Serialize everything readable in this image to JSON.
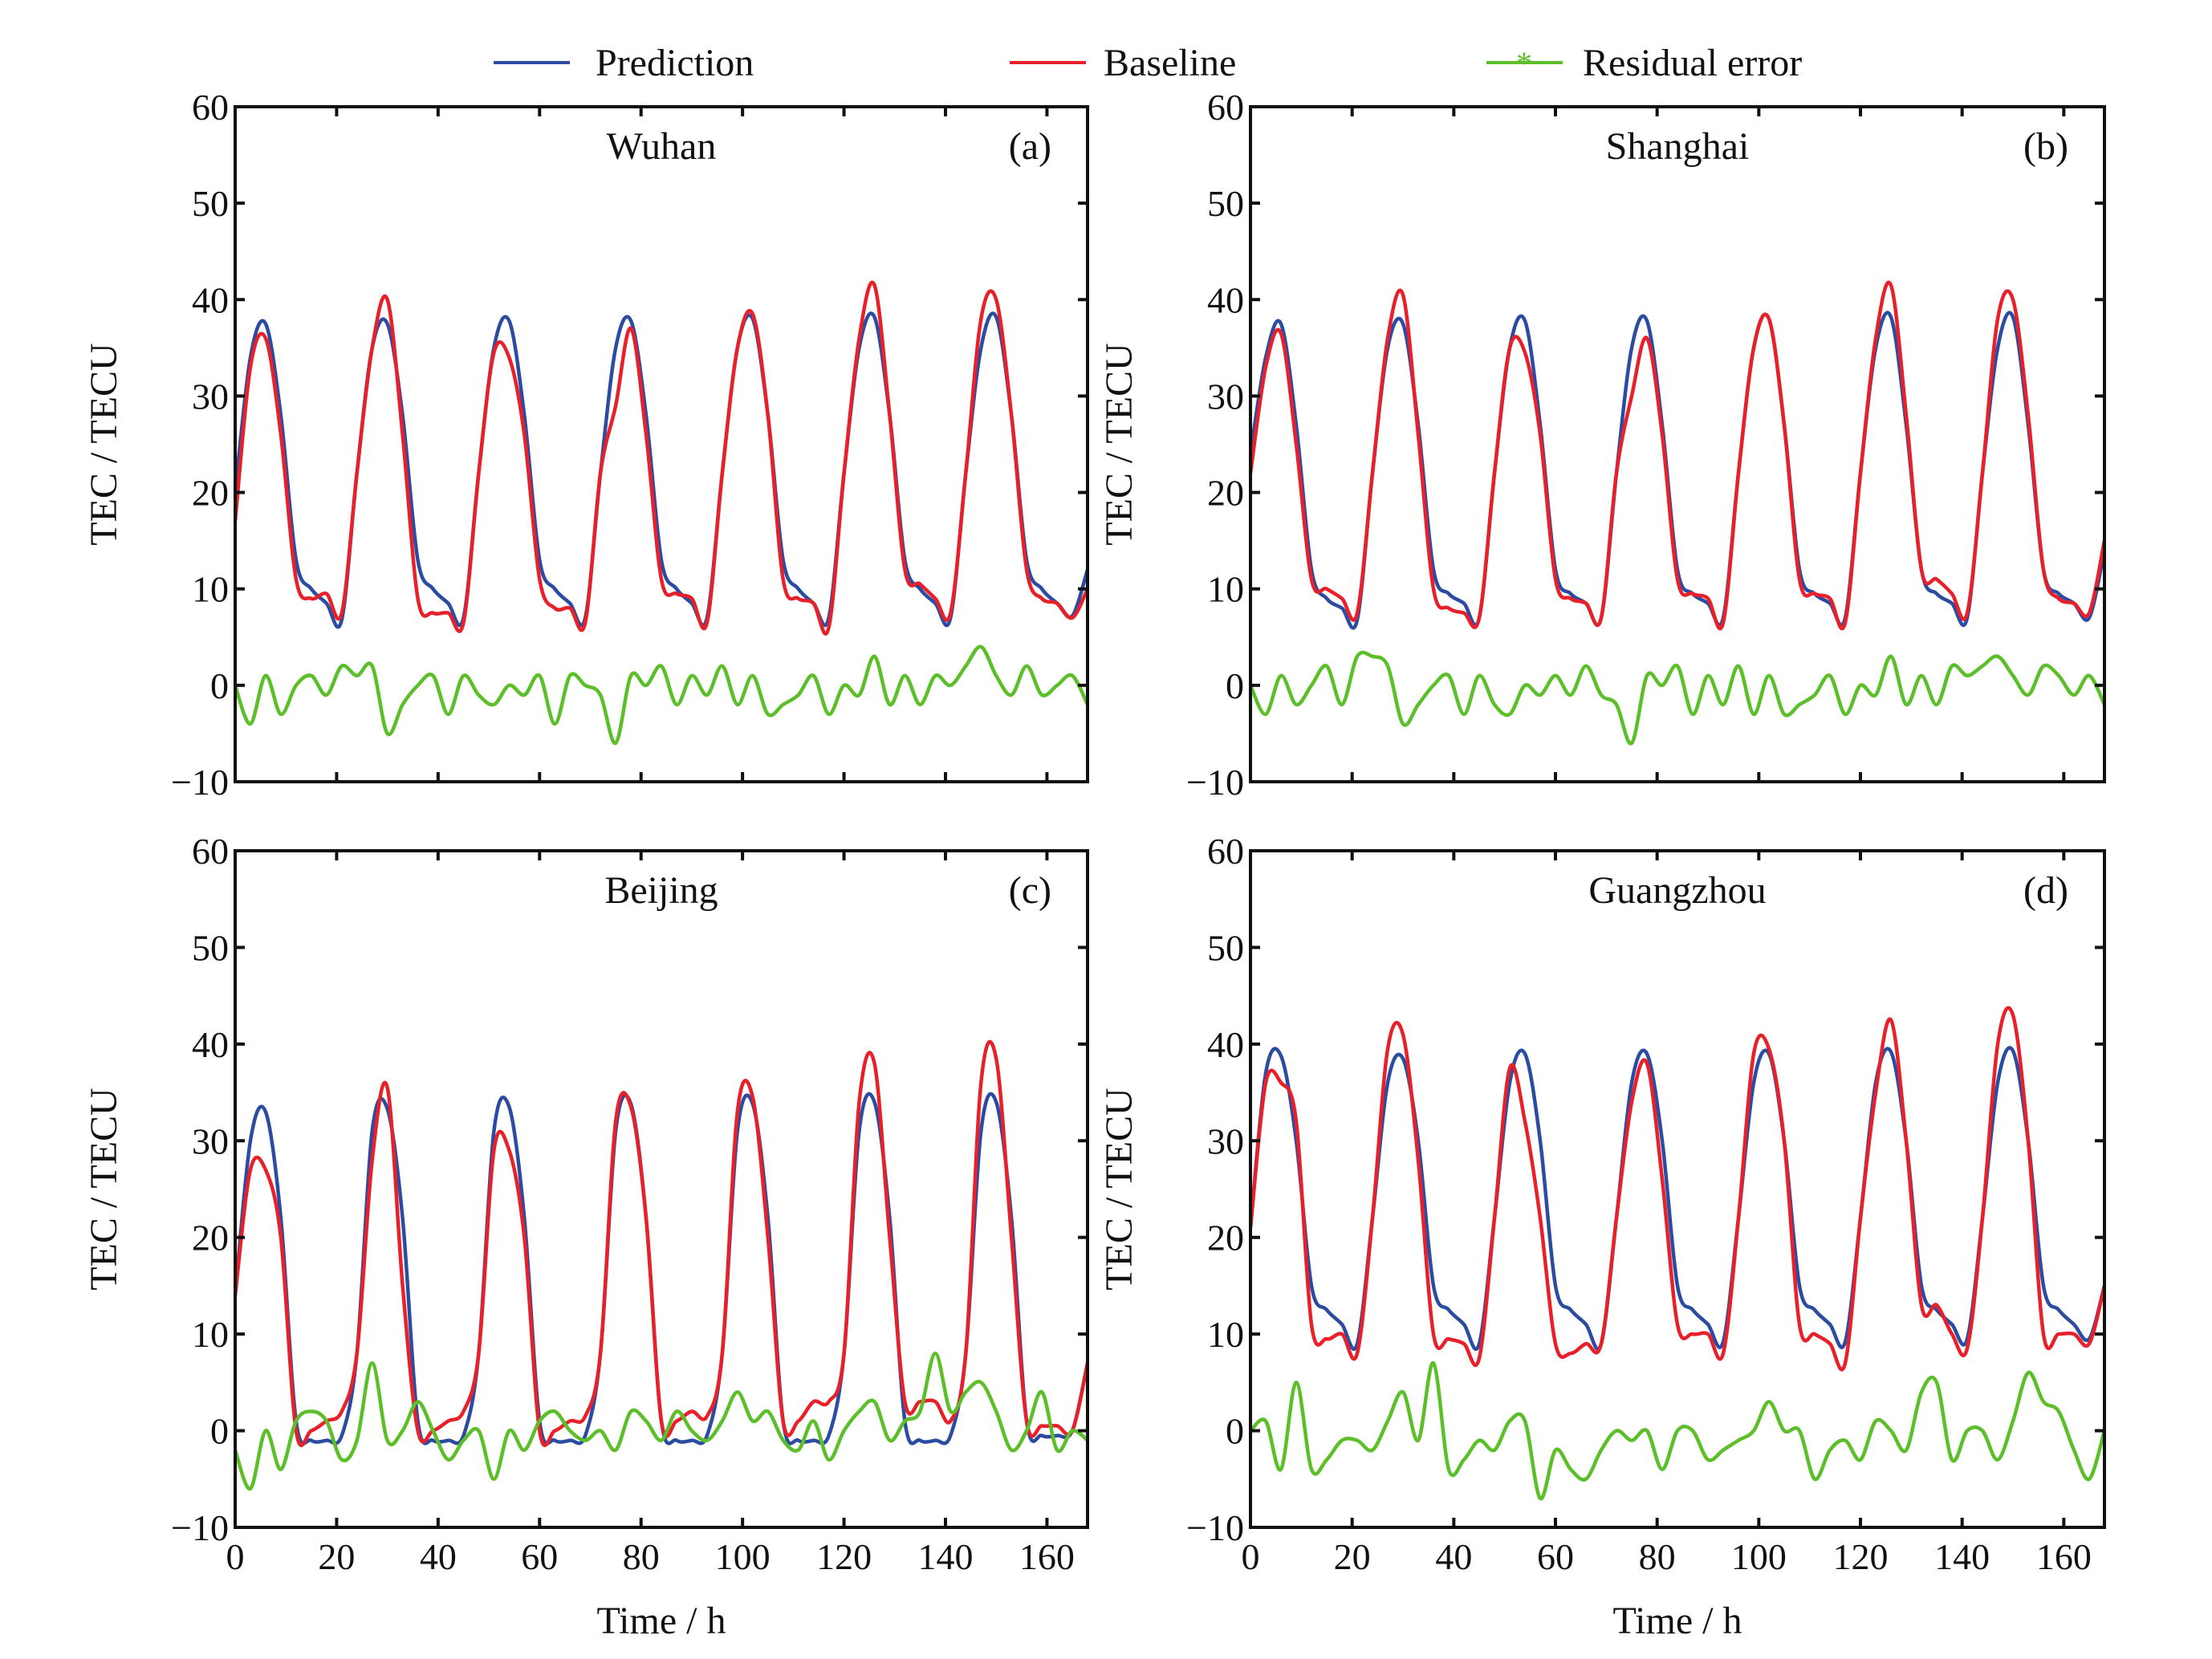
{
  "legend": {
    "placement": "top",
    "items": [
      {
        "label": "Prediction",
        "color": "#2b4ca0",
        "marker": "none"
      },
      {
        "label": "Baseline",
        "color": "#e8202a",
        "marker": "none"
      },
      {
        "label": "Residual error",
        "color": "#5cbf2a",
        "marker": "star"
      }
    ]
  },
  "chart_data": [
    {
      "type": "line",
      "title": "Wuhan",
      "panel_label": "(a)",
      "xlabel": "",
      "ylabel": "TEC / TECU",
      "xlim": [
        0,
        168
      ],
      "ylim": [
        -10,
        60
      ],
      "xticks": [
        0,
        20,
        40,
        60,
        80,
        100,
        120,
        140,
        160
      ],
      "yticks": [
        -10,
        0,
        10,
        20,
        30,
        40,
        50,
        60
      ],
      "show_xtick_labels": false,
      "grid": false,
      "x": [
        0,
        3,
        6,
        9,
        12,
        15,
        18,
        21,
        24,
        27,
        30,
        33,
        36,
        39,
        42,
        45,
        48,
        51,
        54,
        57,
        60,
        63,
        66,
        69,
        72,
        75,
        78,
        81,
        84,
        87,
        90,
        93,
        96,
        99,
        102,
        105,
        108,
        111,
        114,
        117,
        120,
        123,
        126,
        129,
        132,
        135,
        138,
        141,
        144,
        147,
        150,
        153,
        156,
        159,
        162,
        165,
        168
      ],
      "series": [
        {
          "name": "Prediction",
          "values": [
            20,
            34,
            37.5,
            28,
            13,
            10,
            8.5,
            6.8,
            22,
            35,
            37.5,
            28,
            13,
            10,
            8.5,
            7,
            22,
            35,
            37.8,
            28,
            13,
            10,
            8.5,
            7,
            22,
            35,
            37.8,
            28,
            13,
            10,
            8.5,
            7,
            22,
            35,
            38,
            28,
            13,
            10,
            8.5,
            7,
            22,
            35,
            38.2,
            28,
            13,
            10,
            8.5,
            7,
            22,
            35,
            38.2,
            28,
            13,
            10,
            8.5,
            7.2,
            12
          ]
        },
        {
          "name": "Baseline",
          "values": [
            17,
            33,
            36,
            26,
            11,
            9,
            9.5,
            7.5,
            22,
            35,
            40,
            26,
            9,
            7.5,
            7.5,
            6.5,
            22,
            34.5,
            34,
            26,
            11,
            8,
            8,
            6.5,
            22,
            29,
            37,
            26,
            11,
            9.5,
            9,
            6.5,
            22,
            35,
            38.5,
            28,
            11,
            9,
            8.5,
            6,
            22,
            36,
            41.5,
            28,
            12,
            10.5,
            9,
            7.5,
            22,
            38,
            40,
            28,
            12,
            9,
            8.5,
            7,
            10
          ]
        },
        {
          "name": "Residual error",
          "values": [
            0,
            -4,
            1,
            -3,
            0,
            1,
            -1,
            2,
            1,
            2,
            -5,
            -2,
            0,
            1,
            -3,
            1,
            -1,
            -2,
            0,
            -1,
            1,
            -4,
            1,
            0,
            -1,
            -6,
            1,
            0,
            2,
            -2,
            1,
            -1,
            2,
            -2,
            1,
            -3,
            -2,
            -1,
            1,
            -3,
            0,
            -1,
            3,
            -2,
            1,
            -2,
            1,
            0,
            2,
            4,
            1,
            -1,
            2,
            -1,
            0,
            1,
            -2
          ]
        }
      ]
    },
    {
      "type": "line",
      "title": "Shanghai",
      "panel_label": "(b)",
      "xlabel": "",
      "ylabel": "TEC / TECU",
      "xlim": [
        0,
        168
      ],
      "ylim": [
        -10,
        60
      ],
      "xticks": [
        0,
        20,
        40,
        60,
        80,
        100,
        120,
        140,
        160
      ],
      "yticks": [
        -10,
        0,
        10,
        20,
        30,
        40,
        50,
        60
      ],
      "show_xtick_labels": false,
      "grid": false,
      "x": [
        0,
        3,
        6,
        9,
        12,
        15,
        18,
        21,
        24,
        27,
        30,
        33,
        36,
        39,
        42,
        45,
        48,
        51,
        54,
        57,
        60,
        63,
        66,
        69,
        72,
        75,
        78,
        81,
        84,
        87,
        90,
        93,
        96,
        99,
        102,
        105,
        108,
        111,
        114,
        117,
        120,
        123,
        126,
        129,
        132,
        135,
        138,
        141,
        144,
        147,
        150,
        153,
        156,
        159,
        162,
        165,
        168
      ],
      "series": [
        {
          "name": "Prediction",
          "values": [
            24,
            34,
            37.5,
            27,
            12,
            9,
            8,
            6.8,
            22,
            35,
            37.5,
            27,
            12,
            9.5,
            8.5,
            7,
            22,
            35,
            37.8,
            27,
            12,
            9.5,
            8.5,
            7,
            22,
            35,
            37.8,
            27,
            12,
            9.5,
            8.5,
            7,
            22,
            35,
            38,
            27,
            12,
            9.5,
            8.5,
            7,
            22,
            35,
            38.2,
            27,
            12,
            9.5,
            8.5,
            7,
            22,
            35,
            38.2,
            27,
            12,
            9.5,
            8.5,
            7,
            14
          ]
        },
        {
          "name": "Baseline",
          "values": [
            22,
            33,
            36.5,
            25,
            11,
            10,
            9,
            7.5,
            22,
            36,
            40.5,
            26,
            10,
            8,
            7.5,
            7,
            22,
            35,
            34.5,
            26,
            11,
            9,
            8.5,
            7,
            22,
            30,
            36,
            26,
            11,
            9.5,
            9,
            6.5,
            22,
            35,
            38,
            27,
            11,
            9.5,
            9,
            6.5,
            22,
            36,
            41.5,
            28,
            12,
            11,
            9.5,
            7.5,
            22,
            38,
            40,
            28,
            12,
            9,
            8.5,
            7.5,
            15
          ]
        },
        {
          "name": "Residual error",
          "values": [
            0,
            -3,
            1,
            -2,
            0,
            2,
            -2,
            3,
            3,
            2,
            -4,
            -2,
            0,
            1,
            -3,
            1,
            -2,
            -3,
            0,
            -1,
            1,
            -1,
            2,
            -1,
            -2,
            -6,
            1,
            0,
            2,
            -3,
            1,
            -2,
            2,
            -3,
            1,
            -3,
            -2,
            -1,
            1,
            -3,
            0,
            -1,
            3,
            -2,
            1,
            -2,
            2,
            1,
            2,
            3,
            1,
            -1,
            2,
            1,
            -1,
            1,
            -2
          ]
        }
      ]
    },
    {
      "type": "line",
      "title": "Beijing",
      "panel_label": "(c)",
      "xlabel": "Time / h",
      "ylabel": "TEC / TECU",
      "xlim": [
        0,
        168
      ],
      "ylim": [
        -10,
        60
      ],
      "xticks": [
        0,
        20,
        40,
        60,
        80,
        100,
        120,
        140,
        160
      ],
      "yticks": [
        -10,
        0,
        10,
        20,
        30,
        40,
        50,
        60
      ],
      "show_xtick_labels": true,
      "grid": false,
      "x": [
        0,
        3,
        6,
        9,
        12,
        15,
        18,
        21,
        24,
        27,
        30,
        33,
        36,
        39,
        42,
        45,
        48,
        51,
        54,
        57,
        60,
        63,
        66,
        69,
        72,
        75,
        78,
        81,
        84,
        87,
        90,
        93,
        96,
        99,
        102,
        105,
        108,
        111,
        114,
        117,
        120,
        123,
        126,
        129,
        132,
        135,
        138,
        141,
        144,
        147,
        150,
        153,
        156,
        159,
        162,
        165,
        168
      ],
      "series": [
        {
          "name": "Prediction",
          "values": [
            14,
            30,
            33,
            22,
            1,
            -1,
            -1,
            -0.5,
            8,
            31,
            33.3,
            22,
            1,
            -1,
            -1,
            -0.5,
            8,
            31,
            33.5,
            22,
            1,
            -1,
            -1,
            -0.5,
            8,
            31,
            33.8,
            22,
            1,
            -1,
            -1,
            -0.5,
            8,
            31,
            33.8,
            22,
            1,
            -1,
            -1,
            -0.5,
            8,
            31,
            34,
            22,
            1,
            -1,
            -1,
            -0.5,
            8,
            31,
            34,
            22,
            1,
            -0.5,
            -0.5,
            0,
            7
          ]
        },
        {
          "name": "Baseline",
          "values": [
            14,
            27,
            27,
            20,
            0,
            0,
            1,
            2,
            8,
            28,
            35.5,
            15,
            0,
            0,
            1,
            2,
            8,
            29,
            29,
            20,
            0,
            0,
            1,
            1.5,
            8,
            32,
            33.5,
            22,
            1,
            1,
            2,
            1.5,
            8,
            33,
            34.5,
            20,
            1,
            1,
            3,
            3,
            8,
            34,
            38,
            20,
            3,
            3,
            3,
            1,
            8,
            36,
            38.5,
            20,
            1,
            0.5,
            0.5,
            0,
            7
          ]
        },
        {
          "name": "Residual error",
          "values": [
            -2,
            -6,
            0,
            -4,
            1,
            2,
            1,
            -3,
            -1,
            7,
            -1,
            0,
            3,
            0,
            -3,
            -1,
            0,
            -5,
            0,
            -2,
            1,
            2,
            0,
            -1,
            0,
            -2,
            2,
            1,
            -1,
            2,
            0,
            -1,
            1,
            4,
            1,
            2,
            -1,
            -2,
            1,
            -3,
            0,
            2,
            3,
            -1,
            1,
            2,
            8,
            2,
            4,
            5,
            2,
            -2,
            0,
            4,
            -2,
            0,
            -1
          ]
        }
      ]
    },
    {
      "type": "line",
      "title": "Guangzhou",
      "panel_label": "(d)",
      "xlabel": "Time / h",
      "ylabel": "TEC / TECU",
      "xlim": [
        0,
        168
      ],
      "ylim": [
        -10,
        60
      ],
      "xticks": [
        0,
        20,
        40,
        60,
        80,
        100,
        120,
        140,
        160
      ],
      "yticks": [
        -10,
        0,
        10,
        20,
        30,
        40,
        50,
        60
      ],
      "show_xtick_labels": true,
      "grid": false,
      "x": [
        0,
        3,
        6,
        9,
        12,
        15,
        18,
        21,
        24,
        27,
        30,
        33,
        36,
        39,
        42,
        45,
        48,
        51,
        54,
        57,
        60,
        63,
        66,
        69,
        72,
        75,
        78,
        81,
        84,
        87,
        90,
        93,
        96,
        99,
        102,
        105,
        108,
        111,
        114,
        117,
        120,
        123,
        126,
        129,
        132,
        135,
        138,
        141,
        144,
        147,
        150,
        153,
        156,
        159,
        162,
        165,
        168
      ],
      "series": [
        {
          "name": "Prediction",
          "values": [
            21,
            37,
            38.8,
            30,
            15,
            12.5,
            11,
            9,
            22,
            36,
            38.5,
            30,
            15,
            12.5,
            11,
            9,
            22,
            36,
            39,
            30,
            15,
            12.5,
            11,
            9,
            22,
            36,
            39,
            30,
            15,
            12.5,
            11,
            9.2,
            22,
            36,
            39,
            30,
            15,
            12.5,
            11,
            9.2,
            22,
            36,
            39.2,
            30,
            15,
            12.5,
            11,
            9.5,
            22,
            36,
            39.3,
            30,
            15,
            12.5,
            11,
            9.5,
            15
          ]
        },
        {
          "name": "Baseline",
          "values": [
            21,
            36,
            36,
            32,
            11,
            9.5,
            10,
            8,
            22,
            39.5,
            41,
            28,
            10,
            9.5,
            9,
            7.5,
            22,
            37.5,
            32,
            22,
            9,
            8,
            9,
            9,
            22,
            34,
            38,
            26,
            11,
            10,
            10,
            8,
            22,
            39,
            39.5,
            30,
            11,
            10,
            9,
            7,
            22,
            35,
            42.5,
            30,
            13,
            13,
            10,
            8.5,
            22,
            40,
            43,
            30,
            10,
            10,
            10,
            9,
            15
          ]
        },
        {
          "name": "Residual error",
          "values": [
            0,
            1,
            -4,
            5,
            -4,
            -3,
            -1,
            -1,
            -2,
            1,
            4,
            -1,
            7,
            -4,
            -3,
            -1,
            -2,
            1,
            1,
            -7,
            -2,
            -4,
            -5,
            -2,
            0,
            -1,
            0,
            -4,
            0,
            0,
            -3,
            -2,
            -1,
            0,
            3,
            0,
            0,
            -5,
            -2,
            -1,
            -3,
            1,
            0,
            -2,
            4,
            5,
            -3,
            0,
            0,
            -3,
            1,
            6,
            3,
            2,
            -2,
            -5,
            0
          ]
        }
      ]
    }
  ]
}
